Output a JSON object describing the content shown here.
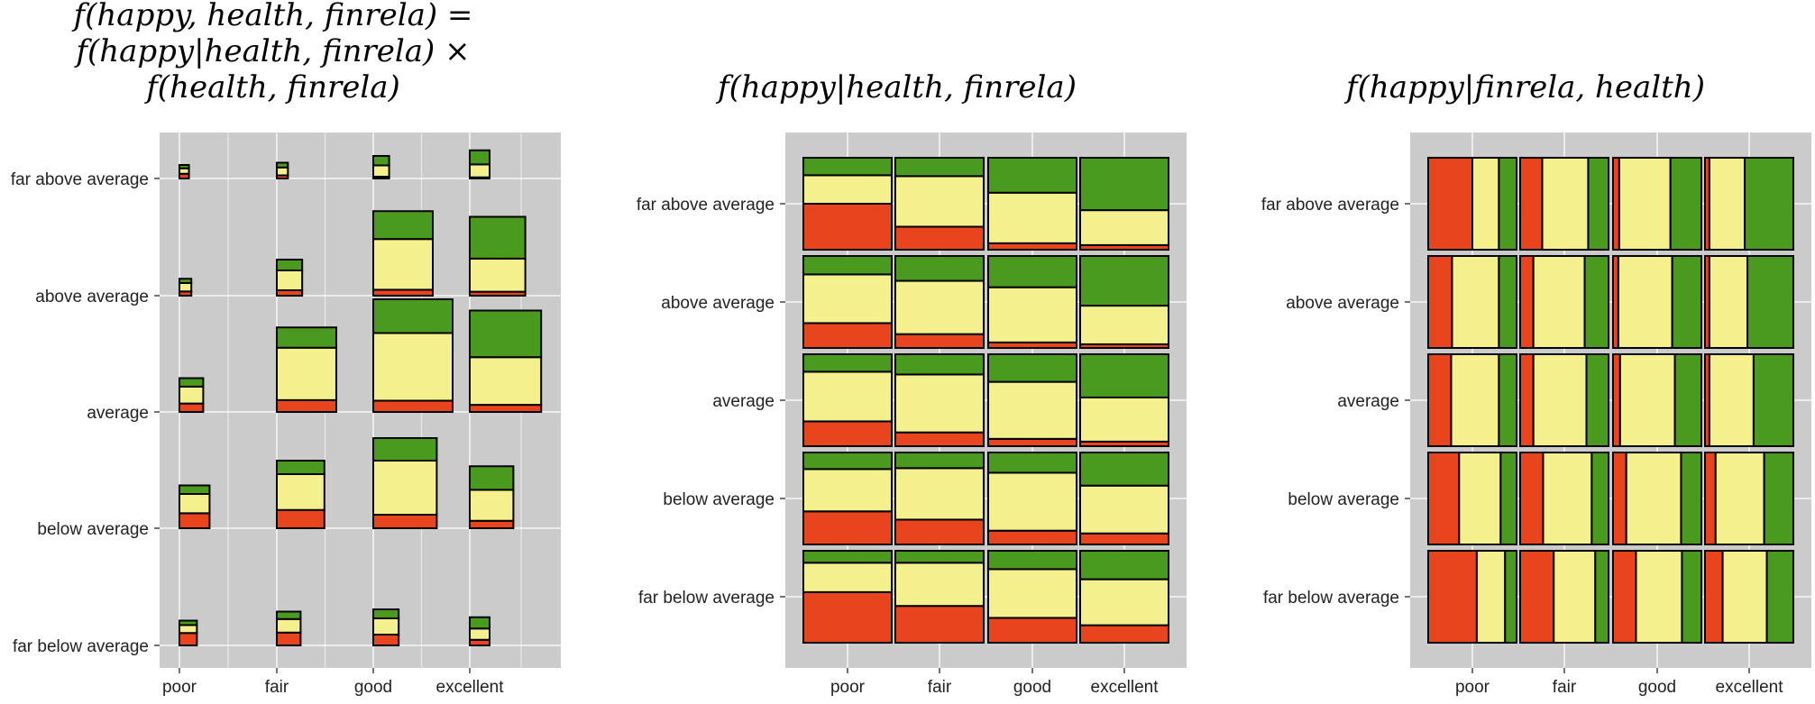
{
  "colors": {
    "unhappy": "#E8441E",
    "neutral": "#F5F08E",
    "happy": "#4A9A1F",
    "panel": "#CBCBCB"
  },
  "titles": {
    "left": [
      "f(happy, health, finrela) =",
      "f(happy|health, finrela) ×",
      "f(health, finrela)"
    ],
    "middle": "f(happy|health, finrela)",
    "right": "f(happy|finrela, health)"
  },
  "chart_data": [
    {
      "type": "bubble-mosaic",
      "title": "f(happy, health, finrela) = f(happy|health, finrela) × f(health, finrela)",
      "categories_x": [
        "poor",
        "fair",
        "good",
        "excellent"
      ],
      "categories_y": [
        "far above average",
        "above average",
        "average",
        "below average",
        "far below average"
      ],
      "happy_order_bottom_to_top": [
        "unhappy",
        "neutral",
        "happy"
      ],
      "cells": [
        {
          "health": "poor",
          "finrela": "far above average",
          "size": 0.12,
          "props": [
            0.35,
            0.4,
            0.25
          ]
        },
        {
          "health": "fair",
          "finrela": "far above average",
          "size": 0.14,
          "props": [
            0.2,
            0.5,
            0.3
          ]
        },
        {
          "health": "good",
          "finrela": "far above average",
          "size": 0.2,
          "props": [
            0.08,
            0.5,
            0.42
          ]
        },
        {
          "health": "excellent",
          "finrela": "far above average",
          "size": 0.25,
          "props": [
            0.04,
            0.46,
            0.5
          ]
        },
        {
          "health": "poor",
          "finrela": "above average",
          "size": 0.15,
          "props": [
            0.25,
            0.5,
            0.25
          ]
        },
        {
          "health": "fair",
          "finrela": "above average",
          "size": 0.32,
          "props": [
            0.15,
            0.55,
            0.3
          ]
        },
        {
          "health": "good",
          "finrela": "above average",
          "size": 0.75,
          "props": [
            0.07,
            0.6,
            0.33
          ]
        },
        {
          "health": "excellent",
          "finrela": "above average",
          "size": 0.7,
          "props": [
            0.05,
            0.42,
            0.53
          ]
        },
        {
          "health": "poor",
          "finrela": "average",
          "size": 0.3,
          "props": [
            0.25,
            0.5,
            0.25
          ]
        },
        {
          "health": "fair",
          "finrela": "average",
          "size": 0.75,
          "props": [
            0.14,
            0.62,
            0.24
          ]
        },
        {
          "health": "good",
          "finrela": "average",
          "size": 1.0,
          "props": [
            0.1,
            0.6,
            0.3
          ]
        },
        {
          "health": "excellent",
          "finrela": "average",
          "size": 0.9,
          "props": [
            0.07,
            0.47,
            0.46
          ]
        },
        {
          "health": "poor",
          "finrela": "below average",
          "size": 0.38,
          "props": [
            0.35,
            0.45,
            0.2
          ]
        },
        {
          "health": "fair",
          "finrela": "below average",
          "size": 0.6,
          "props": [
            0.27,
            0.53,
            0.2
          ]
        },
        {
          "health": "good",
          "finrela": "below average",
          "size": 0.8,
          "props": [
            0.15,
            0.6,
            0.25
          ]
        },
        {
          "health": "excellent",
          "finrela": "below average",
          "size": 0.55,
          "props": [
            0.12,
            0.5,
            0.38
          ]
        },
        {
          "health": "poor",
          "finrela": "far below average",
          "size": 0.22,
          "props": [
            0.5,
            0.32,
            0.18
          ]
        },
        {
          "health": "fair",
          "finrela": "far below average",
          "size": 0.3,
          "props": [
            0.38,
            0.4,
            0.22
          ]
        },
        {
          "health": "good",
          "finrela": "far below average",
          "size": 0.32,
          "props": [
            0.3,
            0.45,
            0.25
          ]
        },
        {
          "health": "excellent",
          "finrela": "far below average",
          "size": 0.25,
          "props": [
            0.2,
            0.4,
            0.4
          ]
        }
      ]
    },
    {
      "type": "mosaic",
      "title": "f(happy|health, finrela)",
      "orientation": "vertical-stack",
      "categories_x": [
        "poor",
        "fair",
        "good",
        "excellent"
      ],
      "categories_y": [
        "far above average",
        "above average",
        "average",
        "below average",
        "far below average"
      ],
      "happy_order_bottom_to_top": [
        "unhappy",
        "neutral",
        "happy"
      ],
      "cells": [
        {
          "health": "poor",
          "finrela": "far above average",
          "props": [
            0.5,
            0.31,
            0.19
          ]
        },
        {
          "health": "fair",
          "finrela": "far above average",
          "props": [
            0.25,
            0.55,
            0.2
          ]
        },
        {
          "health": "good",
          "finrela": "far above average",
          "props": [
            0.07,
            0.55,
            0.38
          ]
        },
        {
          "health": "excellent",
          "finrela": "far above average",
          "props": [
            0.05,
            0.38,
            0.57
          ]
        },
        {
          "health": "poor",
          "finrela": "above average",
          "props": [
            0.27,
            0.53,
            0.2
          ]
        },
        {
          "health": "fair",
          "finrela": "above average",
          "props": [
            0.15,
            0.58,
            0.27
          ]
        },
        {
          "health": "good",
          "finrela": "above average",
          "props": [
            0.06,
            0.6,
            0.34
          ]
        },
        {
          "health": "excellent",
          "finrela": "above average",
          "props": [
            0.04,
            0.42,
            0.54
          ]
        },
        {
          "health": "poor",
          "finrela": "average",
          "props": [
            0.27,
            0.54,
            0.19
          ]
        },
        {
          "health": "fair",
          "finrela": "average",
          "props": [
            0.15,
            0.63,
            0.22
          ]
        },
        {
          "health": "good",
          "finrela": "average",
          "props": [
            0.08,
            0.62,
            0.3
          ]
        },
        {
          "health": "excellent",
          "finrela": "average",
          "props": [
            0.05,
            0.48,
            0.47
          ]
        },
        {
          "health": "poor",
          "finrela": "below average",
          "props": [
            0.36,
            0.46,
            0.18
          ]
        },
        {
          "health": "fair",
          "finrela": "below average",
          "props": [
            0.27,
            0.56,
            0.17
          ]
        },
        {
          "health": "good",
          "finrela": "below average",
          "props": [
            0.15,
            0.63,
            0.22
          ]
        },
        {
          "health": "excellent",
          "finrela": "below average",
          "props": [
            0.12,
            0.52,
            0.36
          ]
        },
        {
          "health": "poor",
          "finrela": "far below average",
          "props": [
            0.55,
            0.32,
            0.13
          ]
        },
        {
          "health": "fair",
          "finrela": "far below average",
          "props": [
            0.4,
            0.47,
            0.13
          ]
        },
        {
          "health": "good",
          "finrela": "far below average",
          "props": [
            0.27,
            0.53,
            0.2
          ]
        },
        {
          "health": "excellent",
          "finrela": "far below average",
          "props": [
            0.19,
            0.5,
            0.31
          ]
        }
      ]
    },
    {
      "type": "mosaic",
      "title": "f(happy|finrela, health)",
      "orientation": "horizontal-stack",
      "categories_x": [
        "poor",
        "fair",
        "good",
        "excellent"
      ],
      "categories_y": [
        "far above average",
        "above average",
        "average",
        "below average",
        "far below average"
      ],
      "happy_order_left_to_right": [
        "unhappy",
        "neutral",
        "happy"
      ],
      "cells": [
        {
          "health": "poor",
          "finrela": "far above average",
          "props": [
            0.5,
            0.3,
            0.2
          ]
        },
        {
          "health": "fair",
          "finrela": "far above average",
          "props": [
            0.25,
            0.52,
            0.23
          ]
        },
        {
          "health": "good",
          "finrela": "far above average",
          "props": [
            0.07,
            0.58,
            0.35
          ]
        },
        {
          "health": "excellent",
          "finrela": "far above average",
          "props": [
            0.05,
            0.4,
            0.55
          ]
        },
        {
          "health": "poor",
          "finrela": "above average",
          "props": [
            0.27,
            0.53,
            0.2
          ]
        },
        {
          "health": "fair",
          "finrela": "above average",
          "props": [
            0.15,
            0.58,
            0.27
          ]
        },
        {
          "health": "good",
          "finrela": "above average",
          "props": [
            0.06,
            0.61,
            0.33
          ]
        },
        {
          "health": "excellent",
          "finrela": "above average",
          "props": [
            0.05,
            0.43,
            0.52
          ]
        },
        {
          "health": "poor",
          "finrela": "average",
          "props": [
            0.26,
            0.54,
            0.2
          ]
        },
        {
          "health": "fair",
          "finrela": "average",
          "props": [
            0.15,
            0.6,
            0.25
          ]
        },
        {
          "health": "good",
          "finrela": "average",
          "props": [
            0.08,
            0.62,
            0.3
          ]
        },
        {
          "health": "excellent",
          "finrela": "average",
          "props": [
            0.05,
            0.5,
            0.45
          ]
        },
        {
          "health": "poor",
          "finrela": "below average",
          "props": [
            0.35,
            0.47,
            0.18
          ]
        },
        {
          "health": "fair",
          "finrela": "below average",
          "props": [
            0.26,
            0.55,
            0.19
          ]
        },
        {
          "health": "good",
          "finrela": "below average",
          "props": [
            0.15,
            0.62,
            0.23
          ]
        },
        {
          "health": "excellent",
          "finrela": "below average",
          "props": [
            0.12,
            0.55,
            0.33
          ]
        },
        {
          "health": "poor",
          "finrela": "far below average",
          "props": [
            0.55,
            0.32,
            0.13
          ]
        },
        {
          "health": "fair",
          "finrela": "far below average",
          "props": [
            0.38,
            0.47,
            0.15
          ]
        },
        {
          "health": "good",
          "finrela": "far below average",
          "props": [
            0.26,
            0.52,
            0.22
          ]
        },
        {
          "health": "excellent",
          "finrela": "far below average",
          "props": [
            0.2,
            0.5,
            0.3
          ]
        }
      ]
    }
  ]
}
